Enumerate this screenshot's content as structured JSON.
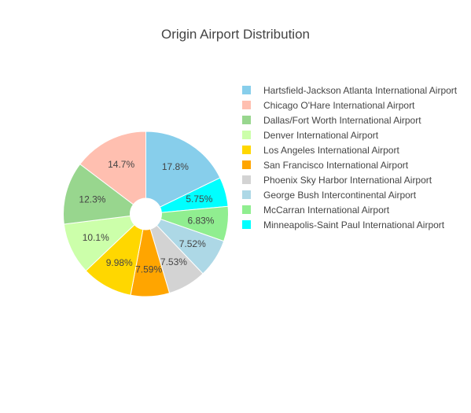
{
  "chart_data": {
    "type": "pie",
    "title": "Origin Airport Distribution",
    "hole": true,
    "slices": [
      {
        "label": "Hartsfield-Jackson Atlanta International Airport",
        "value": 17.8,
        "text": "17.8%",
        "color": "#87CEEB"
      },
      {
        "label": "Minneapolis-Saint Paul International Airport",
        "value": 5.75,
        "text": "5.75%",
        "color": "#00FFFF"
      },
      {
        "label": "McCarran International Airport",
        "value": 6.83,
        "text": "6.83%",
        "color": "#90EE90"
      },
      {
        "label": "George Bush Intercontinental Airport",
        "value": 7.52,
        "text": "7.52%",
        "color": "#ADD8E6"
      },
      {
        "label": "Phoenix Sky Harbor International Airport",
        "value": 7.53,
        "text": "7.53%",
        "color": "#D3D3D3"
      },
      {
        "label": "San Francisco International Airport",
        "value": 7.59,
        "text": "7.59%",
        "color": "#FFA500"
      },
      {
        "label": "Los Angeles International Airport",
        "value": 9.98,
        "text": "9.98%",
        "color": "#FFD700"
      },
      {
        "label": "Denver International Airport",
        "value": 10.1,
        "text": "10.1%",
        "color": "#CCFFAA"
      },
      {
        "label": "Dallas/Fort Worth International Airport",
        "value": 12.3,
        "text": "12.3%",
        "color": "#98D68E"
      },
      {
        "label": "Chicago O'Hare International Airport",
        "value": 14.7,
        "text": "14.7%",
        "color": "#FFBFB0"
      }
    ],
    "legend": [
      {
        "label": "Hartsfield-Jackson Atlanta International Airport",
        "color": "#87CEEB"
      },
      {
        "label": "Chicago O'Hare International Airport",
        "color": "#FFBFB0"
      },
      {
        "label": "Dallas/Fort Worth International Airport",
        "color": "#98D68E"
      },
      {
        "label": "Denver International Airport",
        "color": "#CCFFAA"
      },
      {
        "label": "Los Angeles International Airport",
        "color": "#FFD700"
      },
      {
        "label": "San Francisco International Airport",
        "color": "#FFA500"
      },
      {
        "label": "Phoenix Sky Harbor International Airport",
        "color": "#D3D3D3"
      },
      {
        "label": "George Bush Intercontinental Airport",
        "color": "#ADD8E6"
      },
      {
        "label": "McCarran International Airport",
        "color": "#90EE90"
      },
      {
        "label": "Minneapolis-Saint Paul International Airport",
        "color": "#00FFFF"
      }
    ],
    "legend_position": "right"
  }
}
